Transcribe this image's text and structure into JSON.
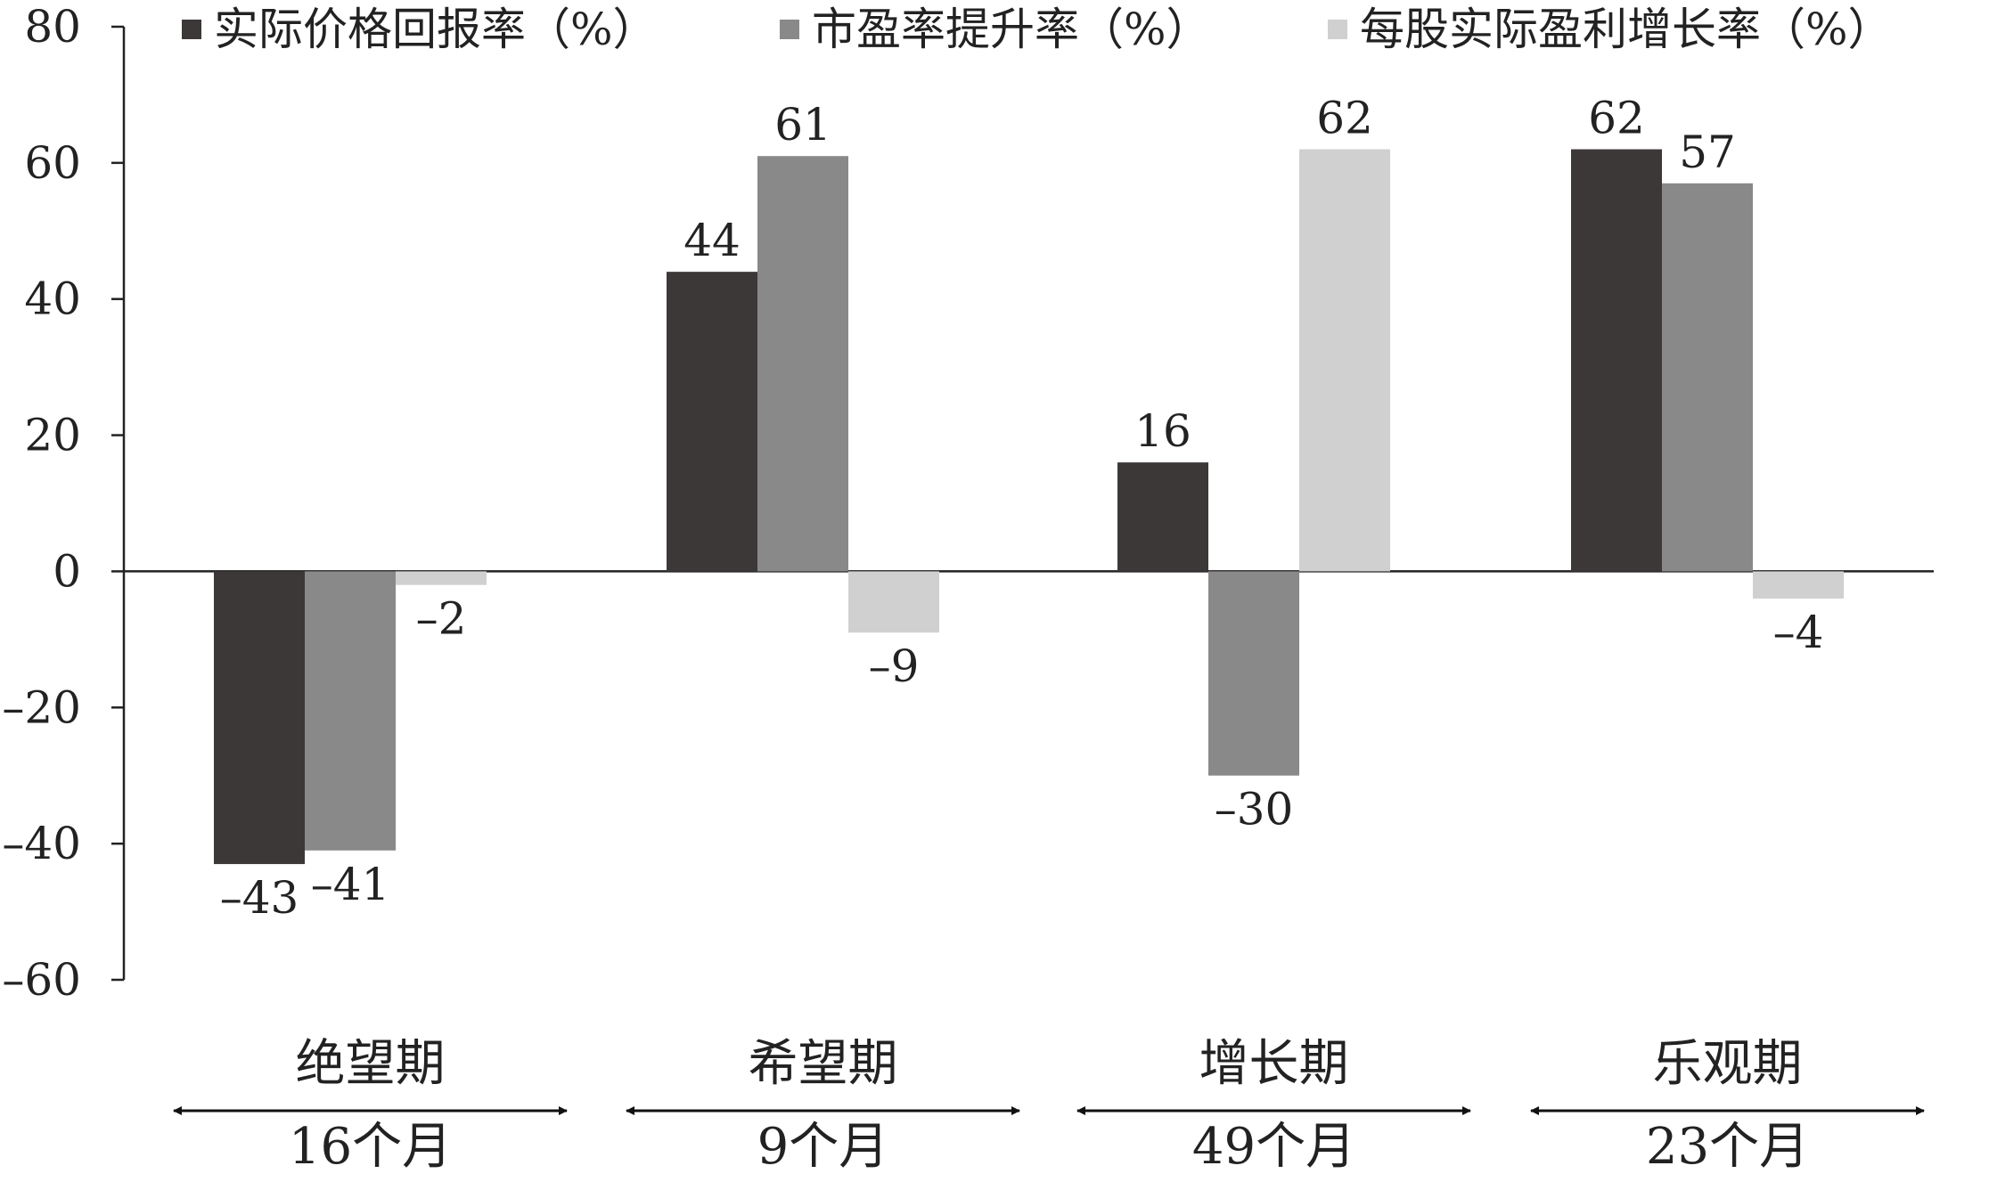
{
  "chart_data": {
    "type": "bar",
    "categories": [
      "绝望期",
      "希望期",
      "增长期",
      "乐观期"
    ],
    "durations": [
      "16个月",
      "9个月",
      "49个月",
      "23个月"
    ],
    "series": [
      {
        "name": "实际价格回报率（%）",
        "values": [
          -43,
          44,
          16,
          62
        ],
        "labels": [
          "–43",
          "44",
          "16",
          "62"
        ],
        "color": "#3d3838"
      },
      {
        "name": "市盈率提升率（%）",
        "values": [
          -41,
          61,
          -30,
          57
        ],
        "labels": [
          "–41",
          "61",
          "–30",
          "57"
        ],
        "color": "#898989"
      },
      {
        "name": "每股实际盈利增长率（%）",
        "values": [
          -2,
          -9,
          62,
          -4
        ],
        "labels": [
          "–2",
          "–9",
          "62",
          "–4"
        ],
        "color": "#d0d0d0"
      }
    ],
    "yticks": [
      "80",
      "60",
      "40",
      "20",
      "0",
      "–20",
      "–40",
      "–60"
    ],
    "ylim": [
      -60,
      80
    ],
    "grid": false,
    "legend_position": "top"
  }
}
